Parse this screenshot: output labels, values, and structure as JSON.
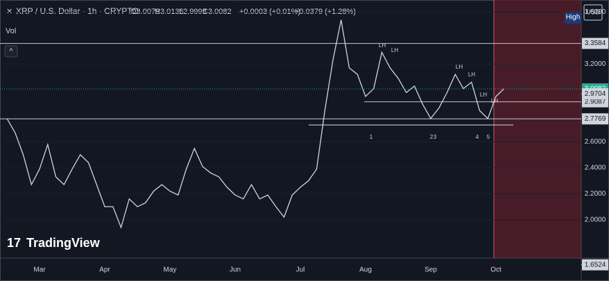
{
  "chart_data": {
    "type": "line",
    "title": "XRP / U.S. Dollar · 1h · CRYPTO",
    "ohlc": [
      "O3.0079",
      "H3.0136",
      "L2.9998",
      "C3.0082"
    ],
    "change": "+0.0003 (+0.01%)",
    "change_total": "+0.0379 (+1.28%)",
    "volume_label": "Vol",
    "badge": "High",
    "currency": "USD",
    "brand": "TradingView",
    "color": "#d1d4dc",
    "categories": [
      null,
      null,
      null,
      null,
      "Mar",
      null,
      null,
      null,
      null,
      null,
      null,
      null,
      "Apr",
      null,
      null,
      null,
      null,
      null,
      null,
      null,
      "May",
      null,
      null,
      null,
      null,
      null,
      null,
      null,
      "Jun",
      null,
      null,
      null,
      null,
      null,
      null,
      null,
      "Jul",
      null,
      null,
      null,
      null,
      null,
      null,
      null,
      "Aug",
      null,
      null,
      null,
      null,
      null,
      null,
      null,
      "Sep",
      null,
      null,
      null,
      null,
      null,
      null,
      null,
      "Oct",
      null
    ],
    "values": [
      2.78,
      2.67,
      2.5,
      2.27,
      2.39,
      2.58,
      2.33,
      2.27,
      2.39,
      2.5,
      2.44,
      2.27,
      2.1,
      2.1,
      1.94,
      2.16,
      2.1,
      2.13,
      2.22,
      2.27,
      2.22,
      2.19,
      2.39,
      2.55,
      2.41,
      2.36,
      2.33,
      2.25,
      2.19,
      2.16,
      2.27,
      2.16,
      2.19,
      2.1,
      2.02,
      2.19,
      2.25,
      2.3,
      2.39,
      2.84,
      3.23,
      3.54,
      3.17,
      3.12,
      2.95,
      3.01,
      3.29,
      3.17,
      3.09,
      2.98,
      3.03,
      2.89,
      2.78,
      2.86,
      2.98,
      3.12,
      3.01,
      3.06,
      2.84,
      2.78,
      2.95,
      3.01
    ],
    "ylim": [
      1.704,
      3.693
    ],
    "yticks": [
      {
        "value": 2.0,
        "label": "2.0000"
      },
      {
        "value": 2.2,
        "label": "2.2000"
      },
      {
        "value": 2.4,
        "label": "2.4000"
      },
      {
        "value": 2.6,
        "label": "2.6000"
      },
      {
        "value": 3.2,
        "label": "3.2000"
      },
      {
        "value": 3.6,
        "label": "3.6000"
      }
    ],
    "levels": [
      {
        "value": 3.3584,
        "label": "3.3584"
      },
      {
        "value": 2.9087,
        "label": "2.9087"
      },
      {
        "value": 2.7769,
        "label": "2.7769"
      }
    ],
    "support_line": 2.73,
    "price_labels": [
      {
        "value": 3.0082,
        "label": "3.0082"
      },
      {
        "value": 2.9704,
        "label": "2.9704"
      },
      {
        "value": 1.6524,
        "label": "1.6524"
      }
    ],
    "annotations": [
      "LH",
      "LH",
      "LH",
      "LH",
      "LH",
      "LH",
      "1",
      "2",
      "3",
      "4",
      "5"
    ]
  }
}
